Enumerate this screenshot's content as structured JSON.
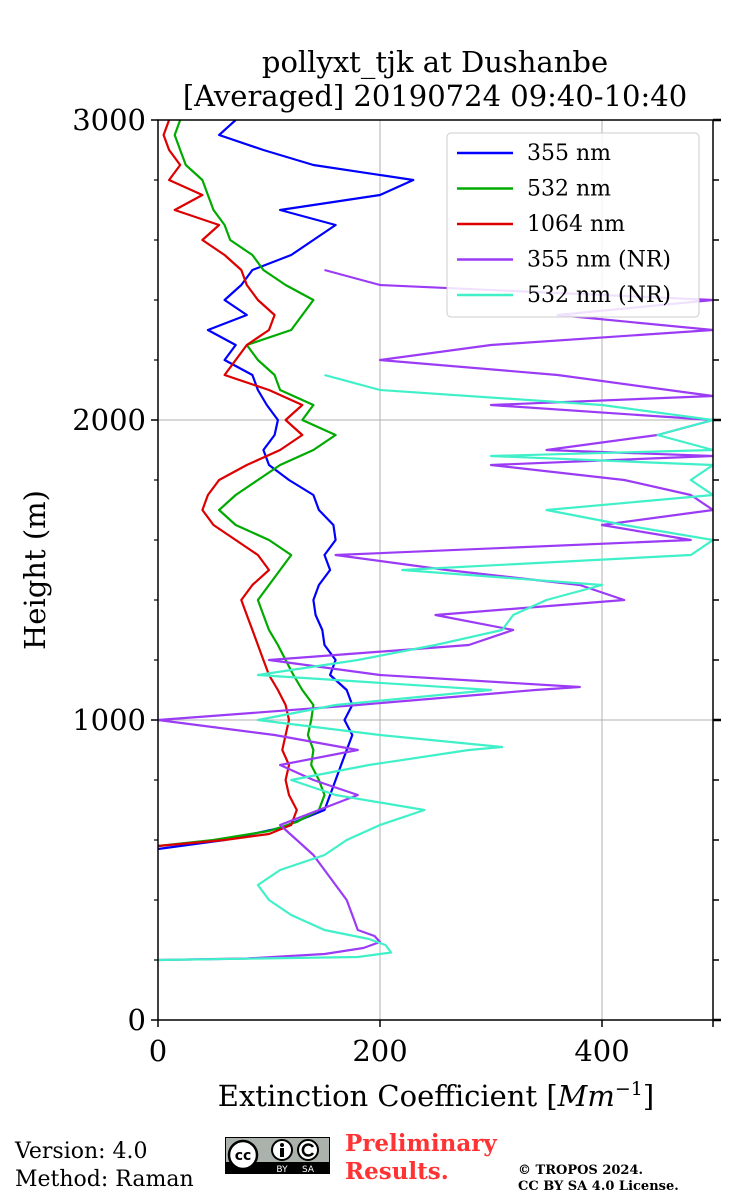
{
  "chart_data": {
    "type": "line",
    "title_line1": "pollyxt_tjk at Dushanbe",
    "title_line2": "[Averaged] 20190724 09:40-10:40",
    "xlabel": "Extinction Coefficient [",
    "xlabel_unit": "Mm",
    "xlabel_exp": "−1",
    "xlabel_end": "]",
    "ylabel": "Height (m)",
    "xlim": [
      0,
      500
    ],
    "ylim": [
      0,
      3000
    ],
    "x_ticks": [
      0,
      200,
      400
    ],
    "x_tick_labels": [
      "0",
      "200",
      "400"
    ],
    "y_ticks": [
      0,
      1000,
      2000,
      3000
    ],
    "y_tick_labels": [
      "0",
      "1000",
      "2000",
      "3000"
    ],
    "grid": true,
    "legend_position": "top-right",
    "series": [
      {
        "name": "355 nm",
        "color": "#0000ff",
        "points": [
          [
            0,
            570
          ],
          [
            60,
            600
          ],
          [
            110,
            640
          ],
          [
            130,
            670
          ],
          [
            150,
            700
          ],
          [
            155,
            750
          ],
          [
            160,
            800
          ],
          [
            165,
            850
          ],
          [
            170,
            900
          ],
          [
            175,
            950
          ],
          [
            168,
            1000
          ],
          [
            175,
            1050
          ],
          [
            170,
            1100
          ],
          [
            155,
            1150
          ],
          [
            160,
            1200
          ],
          [
            150,
            1250
          ],
          [
            148,
            1300
          ],
          [
            142,
            1350
          ],
          [
            140,
            1400
          ],
          [
            145,
            1450
          ],
          [
            155,
            1500
          ],
          [
            150,
            1550
          ],
          [
            160,
            1600
          ],
          [
            158,
            1650
          ],
          [
            145,
            1700
          ],
          [
            140,
            1750
          ],
          [
            118,
            1800
          ],
          [
            100,
            1850
          ],
          [
            95,
            1900
          ],
          [
            105,
            1950
          ],
          [
            108,
            2000
          ],
          [
            98,
            2050
          ],
          [
            90,
            2100
          ],
          [
            85,
            2150
          ],
          [
            60,
            2200
          ],
          [
            70,
            2250
          ],
          [
            45,
            2300
          ],
          [
            80,
            2350
          ],
          [
            60,
            2400
          ],
          [
            75,
            2450
          ],
          [
            85,
            2500
          ],
          [
            120,
            2550
          ],
          [
            140,
            2600
          ],
          [
            160,
            2650
          ],
          [
            110,
            2700
          ],
          [
            200,
            2750
          ],
          [
            230,
            2800
          ],
          [
            140,
            2850
          ],
          [
            95,
            2900
          ],
          [
            55,
            2950
          ],
          [
            70,
            3000
          ]
        ]
      },
      {
        "name": "532 nm",
        "color": "#00aa00",
        "points": [
          [
            0,
            580
          ],
          [
            50,
            600
          ],
          [
            100,
            630
          ],
          [
            125,
            660
          ],
          [
            145,
            700
          ],
          [
            150,
            750
          ],
          [
            145,
            800
          ],
          [
            138,
            850
          ],
          [
            140,
            900
          ],
          [
            135,
            950
          ],
          [
            138,
            1000
          ],
          [
            140,
            1050
          ],
          [
            130,
            1100
          ],
          [
            122,
            1150
          ],
          [
            115,
            1200
          ],
          [
            108,
            1250
          ],
          [
            100,
            1300
          ],
          [
            95,
            1350
          ],
          [
            90,
            1400
          ],
          [
            100,
            1450
          ],
          [
            110,
            1500
          ],
          [
            120,
            1550
          ],
          [
            100,
            1600
          ],
          [
            70,
            1650
          ],
          [
            55,
            1700
          ],
          [
            70,
            1750
          ],
          [
            90,
            1800
          ],
          [
            110,
            1850
          ],
          [
            140,
            1900
          ],
          [
            160,
            1950
          ],
          [
            130,
            2000
          ],
          [
            140,
            2050
          ],
          [
            110,
            2100
          ],
          [
            105,
            2150
          ],
          [
            90,
            2200
          ],
          [
            80,
            2250
          ],
          [
            120,
            2300
          ],
          [
            130,
            2350
          ],
          [
            140,
            2400
          ],
          [
            115,
            2450
          ],
          [
            95,
            2500
          ],
          [
            85,
            2550
          ],
          [
            65,
            2600
          ],
          [
            60,
            2650
          ],
          [
            50,
            2700
          ],
          [
            45,
            2750
          ],
          [
            40,
            2800
          ],
          [
            25,
            2850
          ],
          [
            20,
            2900
          ],
          [
            15,
            2950
          ],
          [
            20,
            3000
          ]
        ]
      },
      {
        "name": "1064 nm",
        "color": "#dd0000",
        "points": [
          [
            0,
            580
          ],
          [
            60,
            600
          ],
          [
            100,
            620
          ],
          [
            120,
            650
          ],
          [
            125,
            700
          ],
          [
            118,
            750
          ],
          [
            115,
            800
          ],
          [
            118,
            850
          ],
          [
            112,
            900
          ],
          [
            115,
            950
          ],
          [
            118,
            1000
          ],
          [
            115,
            1050
          ],
          [
            108,
            1100
          ],
          [
            100,
            1150
          ],
          [
            95,
            1200
          ],
          [
            90,
            1250
          ],
          [
            85,
            1300
          ],
          [
            80,
            1350
          ],
          [
            75,
            1400
          ],
          [
            85,
            1450
          ],
          [
            100,
            1500
          ],
          [
            90,
            1550
          ],
          [
            70,
            1600
          ],
          [
            50,
            1650
          ],
          [
            40,
            1700
          ],
          [
            45,
            1750
          ],
          [
            55,
            1800
          ],
          [
            80,
            1850
          ],
          [
            110,
            1900
          ],
          [
            130,
            1950
          ],
          [
            115,
            2000
          ],
          [
            130,
            2050
          ],
          [
            100,
            2100
          ],
          [
            60,
            2150
          ],
          [
            70,
            2200
          ],
          [
            80,
            2250
          ],
          [
            100,
            2300
          ],
          [
            105,
            2350
          ],
          [
            90,
            2400
          ],
          [
            80,
            2450
          ],
          [
            75,
            2500
          ],
          [
            60,
            2550
          ],
          [
            40,
            2600
          ],
          [
            55,
            2650
          ],
          [
            15,
            2700
          ],
          [
            40,
            2750
          ],
          [
            10,
            2800
          ],
          [
            20,
            2850
          ],
          [
            10,
            2900
          ],
          [
            5,
            2950
          ],
          [
            10,
            3000
          ]
        ]
      },
      {
        "name": "355 nm (NR)",
        "color": "#9b3bf5",
        "points": [
          [
            0,
            200
          ],
          [
            80,
            205
          ],
          [
            150,
            220
          ],
          [
            185,
            240
          ],
          [
            200,
            260
          ],
          [
            195,
            280
          ],
          [
            180,
            300
          ],
          [
            175,
            350
          ],
          [
            170,
            400
          ],
          [
            160,
            450
          ],
          [
            150,
            500
          ],
          [
            140,
            550
          ],
          [
            125,
            600
          ],
          [
            110,
            650
          ],
          [
            145,
            700
          ],
          [
            180,
            750
          ],
          [
            140,
            800
          ],
          [
            110,
            850
          ],
          [
            180,
            900
          ],
          [
            105,
            950
          ],
          [
            0,
            1000
          ],
          [
            180,
            1050
          ],
          [
            340,
            1100
          ],
          [
            380,
            1110
          ],
          [
            200,
            1150
          ],
          [
            100,
            1200
          ],
          [
            280,
            1250
          ],
          [
            320,
            1300
          ],
          [
            250,
            1350
          ],
          [
            420,
            1400
          ],
          [
            380,
            1450
          ],
          [
            260,
            1500
          ],
          [
            160,
            1550
          ],
          [
            480,
            1600
          ],
          [
            400,
            1650
          ],
          [
            500,
            1700
          ],
          [
            480,
            1750
          ],
          [
            420,
            1800
          ],
          [
            300,
            1850
          ],
          [
            500,
            1880
          ],
          [
            350,
            1900
          ],
          [
            450,
            1950
          ],
          [
            500,
            2000
          ],
          [
            300,
            2050
          ],
          [
            500,
            2080
          ],
          [
            360,
            2150
          ],
          [
            200,
            2200
          ],
          [
            300,
            2250
          ],
          [
            500,
            2300
          ],
          [
            360,
            2350
          ],
          [
            500,
            2400
          ],
          [
            200,
            2450
          ],
          [
            150,
            2500
          ]
        ]
      },
      {
        "name": "532 nm (NR)",
        "color": "#40f0c8",
        "points": [
          [
            0,
            200
          ],
          [
            90,
            205
          ],
          [
            180,
            210
          ],
          [
            210,
            225
          ],
          [
            205,
            250
          ],
          [
            190,
            270
          ],
          [
            150,
            300
          ],
          [
            120,
            350
          ],
          [
            100,
            400
          ],
          [
            90,
            450
          ],
          [
            110,
            500
          ],
          [
            150,
            550
          ],
          [
            170,
            600
          ],
          [
            200,
            650
          ],
          [
            240,
            700
          ],
          [
            160,
            750
          ],
          [
            120,
            800
          ],
          [
            190,
            850
          ],
          [
            280,
            900
          ],
          [
            310,
            910
          ],
          [
            200,
            950
          ],
          [
            90,
            1000
          ],
          [
            160,
            1050
          ],
          [
            300,
            1100
          ],
          [
            90,
            1150
          ],
          [
            180,
            1200
          ],
          [
            250,
            1250
          ],
          [
            310,
            1300
          ],
          [
            320,
            1350
          ],
          [
            350,
            1400
          ],
          [
            400,
            1450
          ],
          [
            220,
            1500
          ],
          [
            480,
            1550
          ],
          [
            500,
            1600
          ],
          [
            420,
            1650
          ],
          [
            350,
            1700
          ],
          [
            500,
            1750
          ],
          [
            480,
            1800
          ],
          [
            500,
            1850
          ],
          [
            300,
            1880
          ],
          [
            500,
            1900
          ],
          [
            450,
            1950
          ],
          [
            500,
            2000
          ],
          [
            400,
            2050
          ],
          [
            200,
            2100
          ],
          [
            150,
            2150
          ]
        ]
      }
    ]
  },
  "footer": {
    "version_line": "Version: 4.0",
    "method_line": "Method: Raman",
    "prelim_line1": "Preliminary",
    "prelim_line2": "Results.",
    "copyright_line1": "© TROPOS 2024.",
    "copyright_line2": "CC BY SA 4.0 License."
  },
  "cc_logo": {
    "cc_text": "cc",
    "by_text": "BY",
    "sa_text": "SA"
  }
}
